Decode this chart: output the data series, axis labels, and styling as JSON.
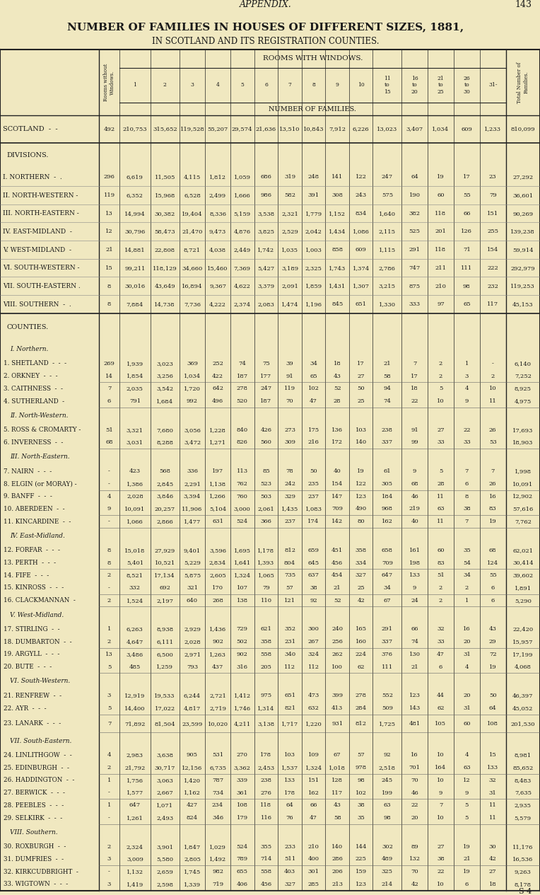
{
  "title1": "NUMBER OF FAMILIES IN HOUSES OF DIFFERENT SIZES, 1881,",
  "title2": "IN SCOTLAND AND ITS REGISTRATION COUNTIES.",
  "header_rww": "ROOMS WITH WINDOWS.",
  "header_nof": "NUMBER OF FAMILIES.",
  "bg_color": "#f0e8c0",
  "appendix_text": "APPENDIX.",
  "page_num": "143",
  "footer": "S 4",
  "rows": [
    {
      "label": "SCOTLAND  -  -",
      "type": "scotland",
      "values": [
        "492",
        "210,753",
        "315,652",
        "119,528",
        "55,207",
        "29,574",
        "21,636",
        "13,510",
        "10,843",
        "7,912",
        "6,226",
        "13,023",
        "3,407",
        "1,034",
        "609",
        "1,233",
        "810,099"
      ]
    },
    {
      "label": "DIVISIONS.",
      "type": "section_header",
      "values": []
    },
    {
      "label": "I. NORTHERN  -  .",
      "type": "division",
      "values": [
        "296",
        "6,619",
        "11,505",
        "4,115",
        "1,812",
        "1,059",
        "686",
        "319",
        "248",
        "141",
        "122",
        "247",
        "64",
        "19",
        "17",
        "23",
        "27,292"
      ]
    },
    {
      "label": "II. NORTH-WESTERN -",
      "type": "division",
      "values": [
        "119",
        "6,352",
        "15,968",
        "6,528",
        "2,499",
        "1,666",
        "986",
        "582",
        "391",
        "308",
        "243",
        "575",
        "190",
        "60",
        "55",
        "79",
        "36,601"
      ]
    },
    {
      "label": "III. NORTH-EASTERN -",
      "type": "division",
      "values": [
        "13",
        "14,994",
        "30,382",
        "19,404",
        "8,336",
        "5,159",
        "3,538",
        "2,321",
        "1,779",
        "1,152",
        "834",
        "1,640",
        "382",
        "118",
        "66",
        "151",
        "90,269"
      ]
    },
    {
      "label": "IV. EAST-MIDLAND  -",
      "type": "division",
      "values": [
        "12",
        "30,796",
        "58,473",
        "21,470",
        "9,473",
        "4,876",
        "3,825",
        "2,529",
        "2,042",
        "1,434",
        "1,086",
        "2,115",
        "525",
        "201",
        "126",
        "255",
        "139,238"
      ]
    },
    {
      "label": "V. WEST-MIDLAND  -",
      "type": "division",
      "values": [
        "21",
        "14,881",
        "22,808",
        "8,721",
        "4,038",
        "2,449",
        "1,742",
        "1,035",
        "1,003",
        "858",
        "609",
        "1,115",
        "291",
        "118",
        "71",
        "154",
        "59,914"
      ]
    },
    {
      "label": "VI. SOUTH-WESTERN -",
      "type": "division",
      "values": [
        "15",
        "99,211",
        "118,129",
        "34,660",
        "15,460",
        "7,369",
        "5,427",
        "3,189",
        "2,325",
        "1,743",
        "1,374",
        "2,786",
        "747",
        "211",
        "111",
        "222",
        "292,979"
      ]
    },
    {
      "label": "VII. SOUTH-EASTERN .",
      "type": "division",
      "values": [
        "8",
        "30,016",
        "43,649",
        "16,894",
        "9,367",
        "4,622",
        "3,379",
        "2,091",
        "1,859",
        "1,431",
        "1,307",
        "3,215",
        "875",
        "210",
        "98",
        "232",
        "119,253"
      ]
    },
    {
      "label": "VIII. SOUTHERN  -  .",
      "type": "division",
      "values": [
        "8",
        "7,884",
        "14,738",
        "7,736",
        "4,222",
        "2,374",
        "2,083",
        "1,474",
        "1,196",
        "845",
        "651",
        "1,330",
        "333",
        "97",
        "65",
        "117",
        "45,153"
      ]
    },
    {
      "label": "COUNTIES.",
      "type": "counties_header",
      "values": []
    },
    {
      "label": "I. Northern.",
      "type": "sub_header",
      "values": []
    },
    {
      "label": "1. SHETLAND  -  -  -",
      "type": "county_pair_top",
      "values": [
        "269",
        "1,939",
        "3,023",
        "369",
        "252",
        "74",
        "75",
        "39",
        "34",
        "18",
        "17",
        "21",
        "7",
        "2",
        "1",
        "-",
        "6,140"
      ]
    },
    {
      "label": "2. ORKNEY  -  -  -",
      "type": "county_pair_bot",
      "values": [
        "14",
        "1,854",
        "3,256",
        "1,034",
        "422",
        "187",
        "177",
        "91",
        "65",
        "43",
        "27",
        "58",
        "17",
        "2",
        "3",
        "2",
        "7,252"
      ]
    },
    {
      "label": "3. CAITHNESS  -  -",
      "type": "county_pair_top",
      "values": [
        "7",
        "2,035",
        "3,542",
        "1,720",
        "642",
        "278",
        "247",
        "119",
        "102",
        "52",
        "50",
        "94",
        "18",
        "5",
        "4",
        "10",
        "8,925"
      ]
    },
    {
      "label": "4. SUTHERLAND  -",
      "type": "county_pair_bot",
      "values": [
        "6",
        "791",
        "1,684",
        "992",
        "496",
        "520",
        "187",
        "70",
        "47",
        "28",
        "25",
        "74",
        "22",
        "10",
        "9",
        "11",
        "4,975"
      ]
    },
    {
      "label": "II. North-Western.",
      "type": "sub_header",
      "values": []
    },
    {
      "label": "5. ROSS & CROMARTY -",
      "type": "county_pair_top",
      "values": [
        "51",
        "3,321",
        "7,680",
        "3,056",
        "1,228",
        "840",
        "426",
        "273",
        "175",
        "136",
        "103",
        "238",
        "91",
        "27",
        "22",
        "26",
        "17,693"
      ]
    },
    {
      "label": "6. INVERNESS  -  -",
      "type": "county_pair_bot",
      "values": [
        "68",
        "3,031",
        "8,288",
        "3,472",
        "1,271",
        "826",
        "560",
        "309",
        "216",
        "172",
        "140",
        "337",
        "99",
        "33",
        "33",
        "53",
        "18,903"
      ]
    },
    {
      "label": "III. North-Eastern.",
      "type": "sub_header",
      "values": []
    },
    {
      "label": "7. NAIRN  -  -  -",
      "type": "county_pair_top",
      "values": [
        "-",
        "423",
        "568",
        "336",
        "197",
        "113",
        "85",
        "78",
        "50",
        "40",
        "19",
        "61",
        "9",
        "5",
        "7",
        "7",
        "1,998"
      ]
    },
    {
      "label": "8. ELGIN (or MORAY) -",
      "type": "county_pair_bot",
      "values": [
        "-",
        "1,386",
        "2,845",
        "2,291",
        "1,138",
        "762",
        "523",
        "242",
        "235",
        "154",
        "122",
        "305",
        "68",
        "28",
        "6",
        "26",
        "10,091"
      ]
    },
    {
      "label": "9. BANFF  -  -  -",
      "type": "county_pair_top",
      "values": [
        "4",
        "2,028",
        "3,846",
        "3,394",
        "1,266",
        "760",
        "503",
        "329",
        "237",
        "147",
        "123",
        "184",
        "46",
        "11",
        "8",
        "16",
        "12,902"
      ]
    },
    {
      "label": "10. ABERDEEN  -  -",
      "type": "county_mid",
      "values": [
        "9",
        "10,091",
        "20,257",
        "11,906",
        "5,104",
        "3,000",
        "2,061",
        "1,435",
        "1,083",
        "709",
        "490",
        "968",
        "219",
        "63",
        "38",
        "83",
        "57,616"
      ]
    },
    {
      "label": "11. KINCARDINE  -  -",
      "type": "county_pair_bot",
      "values": [
        "-",
        "1,066",
        "2,866",
        "1,477",
        "631",
        "524",
        "366",
        "237",
        "174",
        "142",
        "80",
        "162",
        "40",
        "11",
        "7",
        "19",
        "7,762"
      ]
    },
    {
      "label": "IV. East-Midland.",
      "type": "sub_header",
      "values": []
    },
    {
      "label": "12. FORFAR  -  -  -",
      "type": "county_pair_top",
      "values": [
        "8",
        "15,018",
        "27,929",
        "9,401",
        "3,596",
        "1,695",
        "1,178",
        "812",
        "659",
        "451",
        "358",
        "658",
        "161",
        "60",
        "35",
        "68",
        "62,021"
      ]
    },
    {
      "label": "13. PERTH  -  -  -",
      "type": "county_pair_bot",
      "values": [
        "8",
        "5,401",
        "10,521",
        "5,229",
        "2,834",
        "1,641",
        "1,393",
        "804",
        "645",
        "456",
        "334",
        "709",
        "198",
        "83",
        "54",
        "124",
        "30,414"
      ]
    },
    {
      "label": "14. FIFE  -  -  -",
      "type": "county_pair_top",
      "values": [
        "2",
        "8,521",
        "17,134",
        "5,875",
        "2,605",
        "1,324",
        "1,065",
        "735",
        "637",
        "454",
        "327",
        "647",
        "133",
        "51",
        "34",
        "55",
        "39,602"
      ]
    },
    {
      "label": "15. KINROSS  -  -  -",
      "type": "county_mid",
      "values": [
        "-",
        "332",
        "692",
        "321",
        "170",
        "107",
        "79",
        "57",
        "38",
        "21",
        "25",
        "34",
        "9",
        "2",
        "2",
        "6",
        "1,891"
      ]
    },
    {
      "label": "16. CLACKMANNAN  -",
      "type": "county_pair_bot",
      "values": [
        "2",
        "1,524",
        "2,197",
        "640",
        "268",
        "138",
        "110",
        "121",
        "92",
        "52",
        "42",
        "67",
        "24",
        "2",
        "1",
        "6",
        "5,290"
      ]
    },
    {
      "label": "V. West-Midland.",
      "type": "sub_header",
      "values": []
    },
    {
      "label": "17. STIRLING  -  -",
      "type": "county_pair_top",
      "values": [
        "1",
        "6,263",
        "8,938",
        "2,929",
        "1,436",
        "729",
        "621",
        "352",
        "300",
        "240",
        "165",
        "291",
        "66",
        "32",
        "16",
        "43",
        "22,420"
      ]
    },
    {
      "label": "18. DUMBARTON  -  -",
      "type": "county_pair_bot",
      "values": [
        "2",
        "4,647",
        "6,111",
        "2,028",
        "902",
        "502",
        "358",
        "231",
        "267",
        "256",
        "160",
        "337",
        "74",
        "33",
        "20",
        "29",
        "15,957"
      ]
    },
    {
      "label": "19. ARGYLL  -  -  -",
      "type": "county_pair_top",
      "values": [
        "13",
        "3,486",
        "6,500",
        "2,971",
        "1,263",
        "902",
        "558",
        "340",
        "324",
        "262",
        "224",
        "376",
        "130",
        "47",
        "31",
        "72",
        "17,199"
      ]
    },
    {
      "label": "20. BUTE  -  -  -",
      "type": "county_pair_bot",
      "values": [
        "5",
        "485",
        "1,259",
        "793",
        "437",
        "316",
        "205",
        "112",
        "112",
        "100",
        "62",
        "111",
        "21",
        "6",
        "4",
        "19",
        "4,068"
      ]
    },
    {
      "label": "VI. South-Western.",
      "type": "sub_header",
      "values": []
    },
    {
      "label": "21. RENFREW  -  -",
      "type": "county_pair_top",
      "values": [
        "3",
        "12,919",
        "19,533",
        "6,244",
        "2,721",
        "1,412",
        "975",
        "651",
        "473",
        "399",
        "278",
        "552",
        "123",
        "44",
        "20",
        "50",
        "46,397"
      ]
    },
    {
      "label": "22. AYR  -  -  -",
      "type": "county_pair_bot",
      "values": [
        "5",
        "14,400",
        "17,022",
        "4,817",
        "2,719",
        "1,746",
        "1,314",
        "821",
        "632",
        "413",
        "284",
        "509",
        "143",
        "62",
        "31",
        "64",
        "45,052"
      ]
    },
    {
      "label": "23. LANARK  -  -  -",
      "type": "county_single",
      "values": [
        "7",
        "71,892",
        "81,504",
        "23,599",
        "10,020",
        "4,211",
        "3,138",
        "1,717",
        "1,220",
        "931",
        "812",
        "1,725",
        "481",
        "105",
        "60",
        "108",
        "201,530"
      ]
    },
    {
      "label": "VII. South-Eastern.",
      "type": "sub_header",
      "values": []
    },
    {
      "label": "24. LINLITHGOW  -  -",
      "type": "county_pair_top",
      "values": [
        "4",
        "2,983",
        "3,638",
        "905",
        "531",
        "270",
        "178",
        "103",
        "109",
        "67",
        "57",
        "92",
        "16",
        "10",
        "4",
        "15",
        "8,981"
      ]
    },
    {
      "label": "25. EDINBURGH  -  -",
      "type": "county_pair_bot",
      "values": [
        "2",
        "21,792",
        "30,717",
        "12,156",
        "6,735",
        "3,362",
        "2,453",
        "1,537",
        "1,324",
        "1,018",
        "978",
        "2,518",
        "701",
        "164",
        "63",
        "133",
        "85,652"
      ]
    },
    {
      "label": "26. HADDINGTON  -  -",
      "type": "county_pair_top",
      "values": [
        "1",
        "1,756",
        "3,063",
        "1,420",
        "787",
        "339",
        "238",
        "133",
        "151",
        "128",
        "98",
        "245",
        "70",
        "10",
        "12",
        "32",
        "8,483"
      ]
    },
    {
      "label": "27. BERWICK  -  -  -",
      "type": "county_pair_bot",
      "values": [
        "-",
        "1,577",
        "2,667",
        "1,162",
        "734",
        "361",
        "276",
        "178",
        "162",
        "117",
        "102",
        "199",
        "46",
        "9",
        "9",
        "31",
        "7,635"
      ]
    },
    {
      "label": "28. PEEBLES  -  -  -",
      "type": "county_pair_top",
      "values": [
        "1",
        "647",
        "1,071",
        "427",
        "234",
        "108",
        "118",
        "64",
        "66",
        "43",
        "38",
        "63",
        "22",
        "7",
        "5",
        "11",
        "2,935"
      ]
    },
    {
      "label": "29. SELKIRK  -  -  -",
      "type": "county_pair_bot",
      "values": [
        "-",
        "1,261",
        "2,493",
        "824",
        "346",
        "179",
        "116",
        "76",
        "47",
        "58",
        "35",
        "98",
        "20",
        "10",
        "5",
        "11",
        "5,579"
      ]
    },
    {
      "label": "VIII. Southern.",
      "type": "sub_header",
      "values": []
    },
    {
      "label": "30. ROXBURGH  -  -",
      "type": "county_pair_top",
      "values": [
        "2",
        "2,324",
        "3,901",
        "1,847",
        "1,029",
        "524",
        "355",
        "233",
        "210",
        "140",
        "144",
        "302",
        "89",
        "27",
        "19",
        "30",
        "11,176"
      ]
    },
    {
      "label": "31. DUMFRIES  -  -",
      "type": "county_pair_bot",
      "values": [
        "3",
        "3,009",
        "5,580",
        "2,805",
        "1,492",
        "789",
        "714",
        "511",
        "400",
        "286",
        "225",
        "489",
        "132",
        "38",
        "21",
        "42",
        "16,536"
      ]
    },
    {
      "label": "32. KIRKCUDBRIGHT  -",
      "type": "county_pair_top",
      "values": [
        "-",
        "1,132",
        "2,659",
        "1,745",
        "982",
        "655",
        "558",
        "403",
        "301",
        "206",
        "159",
        "325",
        "70",
        "22",
        "19",
        "27",
        "9,263"
      ]
    },
    {
      "label": "33. WIGTOWN  -  -  -",
      "type": "county_pair_bot",
      "values": [
        "3",
        "1,419",
        "2,598",
        "1,339",
        "719",
        "406",
        "456",
        "327",
        "285",
        "213",
        "123",
        "214",
        "42",
        "10",
        "6",
        "18",
        "8,178"
      ]
    }
  ]
}
